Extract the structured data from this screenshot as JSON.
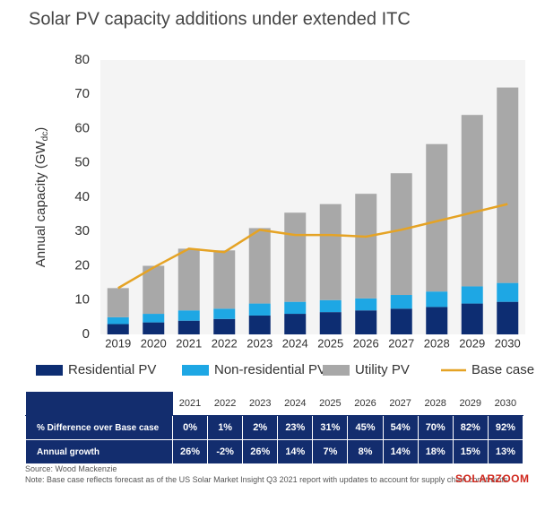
{
  "chart_data": {
    "type": "stacked_bar_line",
    "title": "Solar PV capacity additions under extended ITC",
    "y_label": [
      "Annual capacity (GW",
      "dc",
      ")"
    ],
    "categories": [
      "2019",
      "2020",
      "2021",
      "2022",
      "2023",
      "2024",
      "2025",
      "2026",
      "2027",
      "2028",
      "2029",
      "2030"
    ],
    "series": [
      {
        "name": "Residential PV",
        "color": "#0d2d72",
        "kind": "bar",
        "values": [
          3,
          3.5,
          4,
          4.5,
          5.5,
          6,
          6.5,
          7,
          7.5,
          8,
          9,
          9.5
        ]
      },
      {
        "name": "Non-residential PV",
        "color": "#1ea7e4",
        "kind": "bar",
        "values": [
          2,
          2.5,
          3,
          3,
          3.5,
          3.5,
          3.5,
          3.5,
          4,
          4.5,
          5,
          5.5
        ]
      },
      {
        "name": "Utility PV",
        "color": "#a8a8a8",
        "kind": "bar",
        "values": [
          8.5,
          14,
          18,
          17,
          22,
          26,
          28,
          30.5,
          35.5,
          43,
          50,
          57
        ]
      },
      {
        "name": "Base case",
        "color": "#e5a325",
        "kind": "line",
        "values": [
          13.5,
          19.5,
          25,
          24,
          30.5,
          29,
          29,
          28.5,
          30.5,
          33,
          35.5,
          38
        ]
      }
    ],
    "ylim": [
      0,
      80
    ],
    "yticks": [
      0,
      10,
      20,
      30,
      40,
      50,
      60,
      70,
      80
    ],
    "grid": false,
    "legend": "bottom"
  },
  "table": {
    "header": [
      "2021",
      "2022",
      "2023",
      "2024",
      "2025",
      "2026",
      "2027",
      "2028",
      "2029",
      "2030"
    ],
    "rows": [
      {
        "label": "% Difference over Base case",
        "cells": [
          "0%",
          "1%",
          "2%",
          "23%",
          "31%",
          "45%",
          "54%",
          "70%",
          "82%",
          "92%"
        ]
      },
      {
        "label": "Annual growth",
        "cells": [
          "26%",
          "-2%",
          "26%",
          "14%",
          "7%",
          "8%",
          "14%",
          "18%",
          "15%",
          "13%"
        ]
      }
    ]
  },
  "notes": {
    "source": "Source: Wood Mackenzie",
    "note": "Note: Base case reflects forecast as of the US Solar Market Insight Q3 2021 report with updates to account for supply chain constraints"
  },
  "watermark": "SOLARZOOM"
}
